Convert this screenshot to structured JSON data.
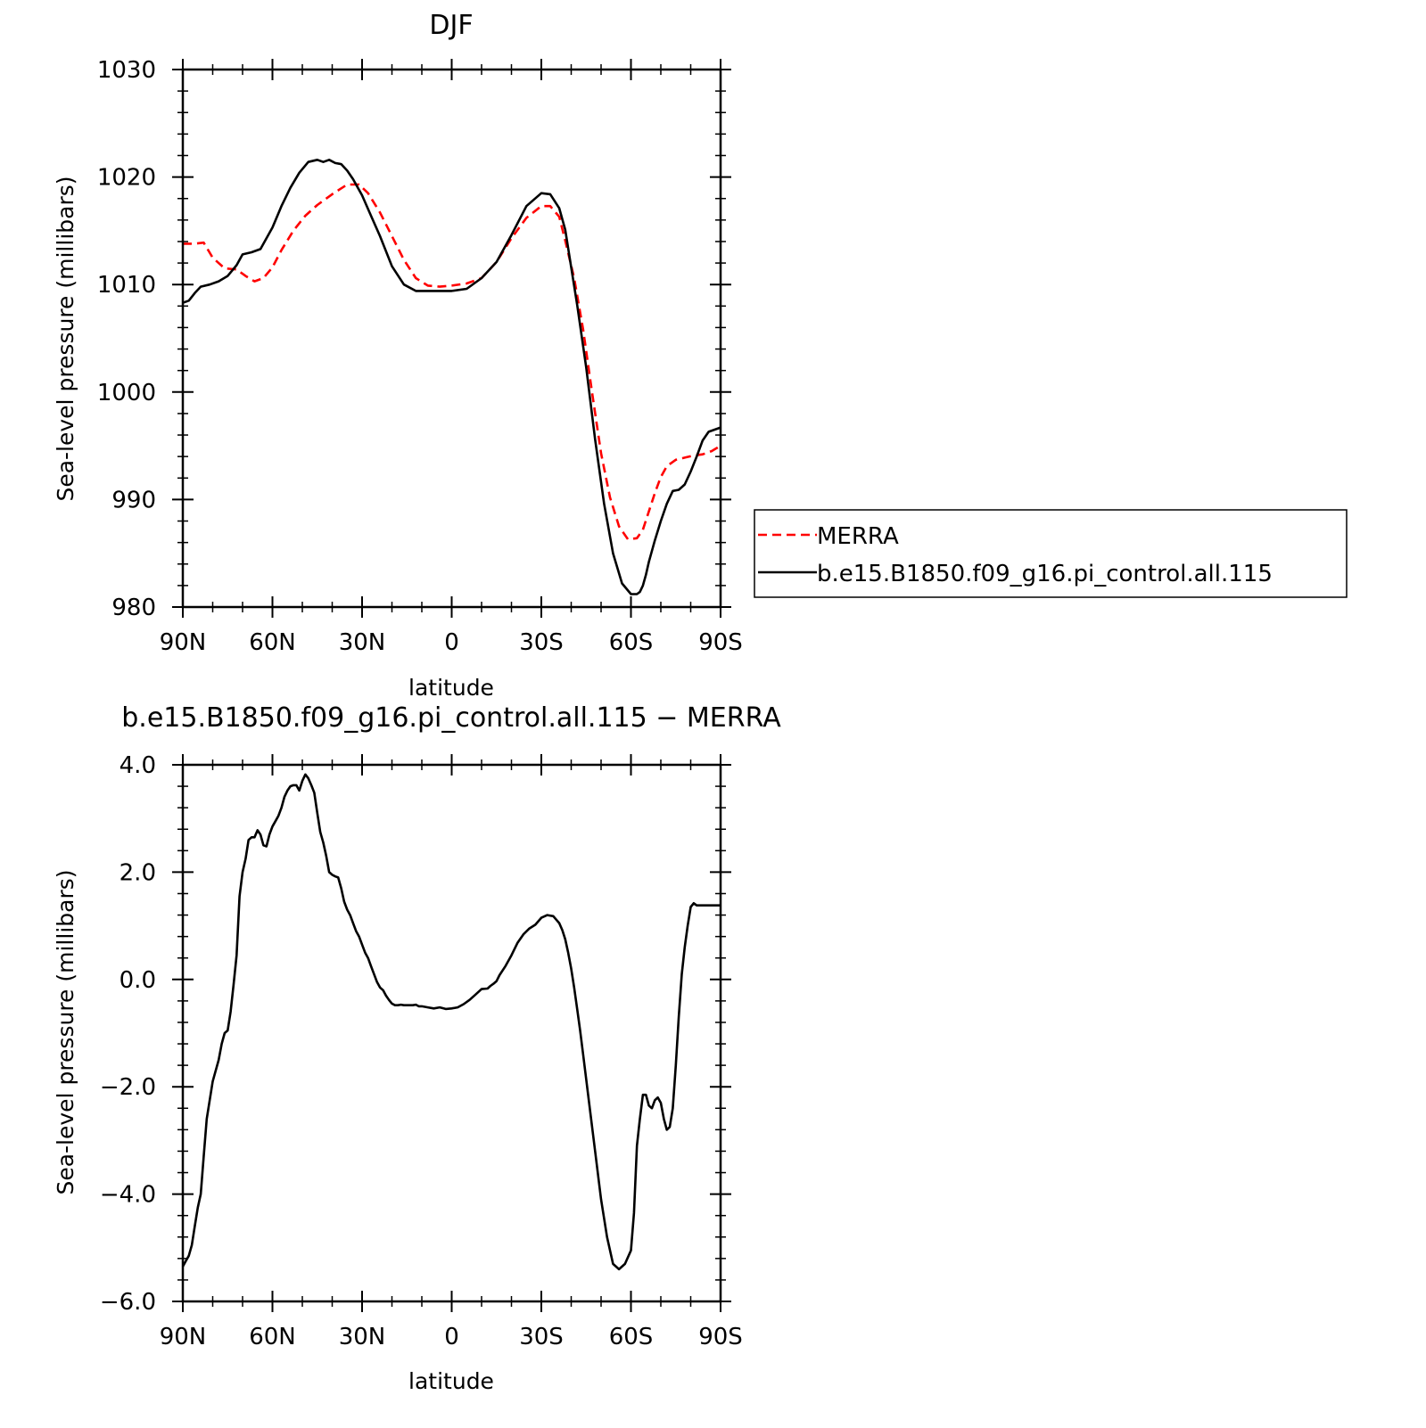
{
  "chart_data": [
    {
      "type": "line",
      "title": "DJF",
      "xlabel": "latitude",
      "ylabel": "Sea-level pressure (millibars)",
      "xlim": [
        90,
        -90
      ],
      "ylim": [
        980,
        1030
      ],
      "x_ticks": [
        90,
        60,
        30,
        0,
        -30,
        -60,
        -90
      ],
      "x_tick_labels": [
        "90N",
        "60N",
        "30N",
        "0",
        "30S",
        "60S",
        "90S"
      ],
      "y_ticks": [
        980,
        990,
        1000,
        1010,
        1020,
        1030
      ],
      "y_tick_labels": [
        "980",
        "990",
        "1000",
        "1010",
        "1020",
        "1030"
      ],
      "legend_position": "right",
      "series": [
        {
          "name": "MERRA",
          "color": "#ff0000",
          "style": "dashed",
          "x": [
            90,
            86,
            83,
            80,
            76,
            72,
            69,
            66,
            63,
            60,
            57,
            53,
            49,
            45,
            40,
            35,
            31,
            28,
            24,
            20,
            16,
            12,
            8,
            4,
            0,
            -5,
            -10,
            -15,
            -20,
            -25,
            -30,
            -33,
            -36,
            -38,
            -41,
            -44,
            -47,
            -50,
            -53,
            -56,
            -59,
            -62,
            -64,
            -66,
            -68,
            -70,
            -72,
            -75,
            -78,
            -81,
            -84,
            -87,
            -90
          ],
          "y": [
            1013.8,
            1013.8,
            1013.9,
            1012.5,
            1011.5,
            1011.4,
            1010.8,
            1010.3,
            1010.6,
            1011.6,
            1013.2,
            1015.0,
            1016.4,
            1017.4,
            1018.4,
            1019.3,
            1019.3,
            1018.5,
            1016.7,
            1014.5,
            1012.3,
            1010.6,
            1009.9,
            1009.8,
            1009.9,
            1010.1,
            1010.6,
            1012.1,
            1014.3,
            1016.2,
            1017.3,
            1017.3,
            1016.3,
            1014.1,
            1010.6,
            1005.8,
            999.9,
            994.3,
            990.2,
            987.5,
            986.3,
            986.4,
            987.2,
            988.9,
            990.6,
            992.1,
            993.1,
            993.7,
            993.9,
            994.1,
            994.2,
            994.5,
            995.0
          ]
        },
        {
          "name": "b.e15.B1850.f09_g16.pi_control.all.115",
          "color": "#000000",
          "style": "solid",
          "x": [
            90,
            88,
            86,
            84,
            81,
            78,
            75,
            72,
            70,
            67,
            64,
            60,
            57,
            54,
            51,
            48,
            45,
            43,
            41,
            39,
            37,
            35,
            33,
            30,
            27,
            24,
            20,
            16,
            12,
            8,
            4,
            0,
            -5,
            -10,
            -15,
            -20,
            -25,
            -30,
            -33,
            -36,
            -38,
            -40,
            -42,
            -45,
            -48,
            -51,
            -54,
            -57,
            -60,
            -62,
            -63,
            -64,
            -65,
            -66,
            -68,
            -70,
            -72,
            -74,
            -76,
            -78,
            -80,
            -82,
            -84,
            -86,
            -88,
            -90
          ],
          "y": [
            1008.3,
            1008.5,
            1009.2,
            1009.8,
            1010.0,
            1010.3,
            1010.8,
            1011.8,
            1012.8,
            1013.0,
            1013.3,
            1015.3,
            1017.3,
            1019.0,
            1020.4,
            1021.4,
            1021.6,
            1021.4,
            1021.6,
            1021.3,
            1021.2,
            1020.6,
            1019.8,
            1018.3,
            1016.4,
            1014.5,
            1011.7,
            1010.0,
            1009.4,
            1009.4,
            1009.4,
            1009.4,
            1009.6,
            1010.6,
            1012.1,
            1014.6,
            1017.3,
            1018.5,
            1018.4,
            1017.1,
            1015.1,
            1011.6,
            1008.1,
            1002.3,
            995.6,
            989.6,
            985.0,
            982.2,
            981.2,
            981.2,
            981.4,
            982.0,
            983.0,
            984.2,
            986.2,
            988.0,
            989.6,
            990.8,
            990.9,
            991.4,
            992.6,
            994.0,
            995.5,
            996.3,
            996.5,
            996.7
          ]
        }
      ]
    },
    {
      "type": "line",
      "title": "b.e15.B1850.f09_g16.pi_control.all.115 − MERRA",
      "xlabel": "latitude",
      "ylabel": "Sea-level pressure (millibars)",
      "xlim": [
        90,
        -90
      ],
      "ylim": [
        -6.0,
        4.0
      ],
      "x_ticks": [
        90,
        60,
        30,
        0,
        -30,
        -60,
        -90
      ],
      "x_tick_labels": [
        "90N",
        "60N",
        "30N",
        "0",
        "30S",
        "60S",
        "90S"
      ],
      "y_ticks": [
        -6.0,
        -4.0,
        -2.0,
        0.0,
        2.0,
        4.0
      ],
      "y_tick_labels": [
        "−6.0",
        "−4.0",
        "−2.0",
        "0.0",
        "2.0",
        "4.0"
      ],
      "series": [
        {
          "color": "#000000",
          "style": "solid",
          "x": [
            90,
            89,
            88,
            87,
            86,
            85,
            84,
            83,
            82,
            80,
            78,
            77,
            76,
            75,
            74,
            73,
            72,
            71,
            70,
            69,
            68,
            67,
            66,
            65,
            64,
            63,
            62,
            61,
            60,
            59,
            58,
            57,
            56,
            55,
            54,
            53,
            52,
            51,
            50,
            49,
            48,
            47,
            46,
            45,
            44,
            43,
            42,
            41,
            40,
            39,
            38,
            37,
            36,
            35,
            34,
            33,
            32,
            31,
            30,
            29,
            28,
            27,
            26,
            25,
            24,
            23,
            22,
            21,
            20,
            19,
            18,
            17,
            16,
            15,
            14,
            13,
            12,
            11,
            10,
            8,
            6,
            4,
            2,
            0,
            -2,
            -4,
            -6,
            -8,
            -10,
            -12,
            -13,
            -14,
            -15,
            -16,
            -18,
            -20,
            -22,
            -24,
            -26,
            -28,
            -30,
            -32,
            -34,
            -36,
            -37,
            -38,
            -39,
            -40,
            -41,
            -42,
            -43,
            -44,
            -46,
            -48,
            -50,
            -52,
            -54,
            -56,
            -58,
            -60,
            -61,
            -62,
            -63,
            -64,
            -65,
            -66,
            -67,
            -68,
            -69,
            -70,
            -71,
            -72,
            -73,
            -74,
            -75,
            -76,
            -77,
            -78,
            -79,
            -80,
            -81,
            -82,
            -83,
            -84,
            -85,
            -86,
            -87,
            -88,
            -89,
            -90
          ],
          "y": [
            -5.35,
            -5.25,
            -5.15,
            -4.95,
            -4.6,
            -4.25,
            -4.0,
            -3.3,
            -2.6,
            -1.9,
            -1.5,
            -1.2,
            -1.0,
            -0.95,
            -0.6,
            -0.1,
            0.45,
            1.55,
            2.0,
            2.25,
            2.6,
            2.65,
            2.65,
            2.78,
            2.7,
            2.5,
            2.48,
            2.7,
            2.85,
            2.95,
            3.05,
            3.2,
            3.4,
            3.52,
            3.6,
            3.62,
            3.62,
            3.52,
            3.7,
            3.82,
            3.75,
            3.62,
            3.48,
            3.1,
            2.75,
            2.55,
            2.3,
            2.0,
            1.95,
            1.92,
            1.9,
            1.7,
            1.45,
            1.3,
            1.2,
            1.05,
            0.9,
            0.8,
            0.65,
            0.5,
            0.4,
            0.25,
            0.1,
            -0.05,
            -0.15,
            -0.2,
            -0.3,
            -0.38,
            -0.45,
            -0.48,
            -0.48,
            -0.47,
            -0.48,
            -0.48,
            -0.48,
            -0.48,
            -0.47,
            -0.5,
            -0.5,
            -0.52,
            -0.54,
            -0.52,
            -0.55,
            -0.54,
            -0.52,
            -0.46,
            -0.38,
            -0.28,
            -0.18,
            -0.17,
            -0.12,
            -0.08,
            -0.03,
            0.08,
            0.25,
            0.45,
            0.68,
            0.84,
            0.95,
            1.02,
            1.15,
            1.2,
            1.18,
            1.05,
            0.92,
            0.75,
            0.5,
            0.2,
            -0.15,
            -0.55,
            -0.95,
            -1.4,
            -2.3,
            -3.2,
            -4.1,
            -4.8,
            -5.3,
            -5.4,
            -5.3,
            -5.05,
            -4.35,
            -3.1,
            -2.6,
            -2.15,
            -2.15,
            -2.35,
            -2.4,
            -2.25,
            -2.2,
            -2.3,
            -2.6,
            -2.8,
            -2.75,
            -2.4,
            -1.6,
            -0.7,
            0.1,
            0.6,
            1.0,
            1.35,
            1.42,
            1.38,
            1.38,
            1.38,
            1.38,
            1.38,
            1.38,
            1.38,
            1.38,
            1.38
          ]
        }
      ]
    }
  ]
}
